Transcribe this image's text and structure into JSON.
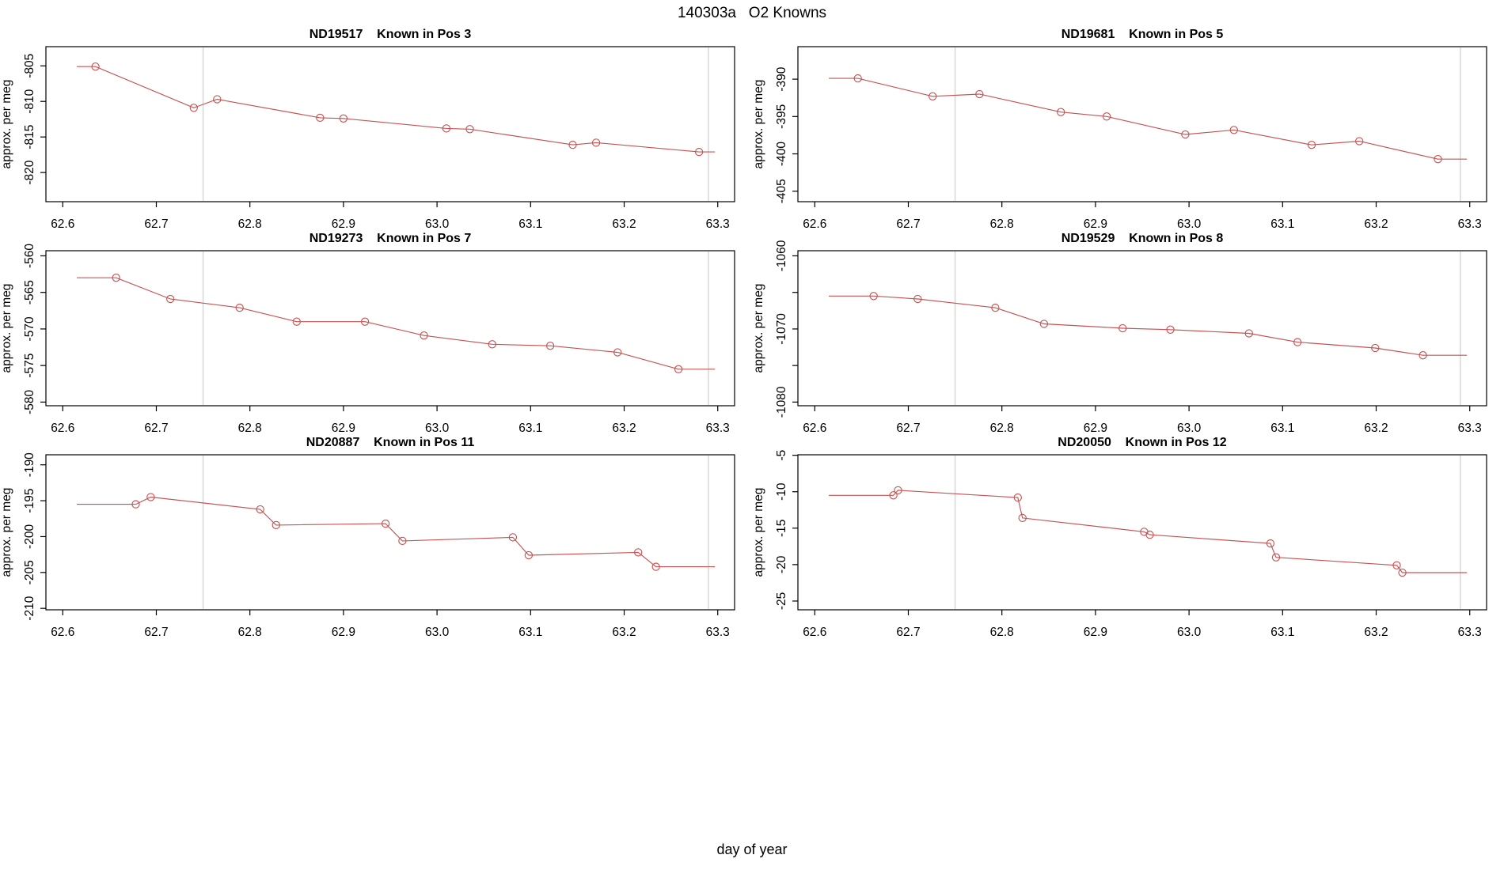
{
  "page": {
    "title": "140303a   O2 Knowns",
    "xlabel": "day of year"
  },
  "chart_data": [
    {
      "type": "line",
      "title": "ND19517    Known in Pos 3",
      "sample_id": "ND19517",
      "position_label": "Known in Pos 3",
      "ylabel": "approx. per meg",
      "line_color": "#C65353",
      "vline_color": "#D7D7D7",
      "xlim": [
        62.582,
        63.318
      ],
      "ylim": [
        -824.1,
        -802.3
      ],
      "vlines": [
        62.75,
        63.29
      ],
      "x_ticks": [
        [
          62.6,
          "62.6"
        ],
        [
          62.7,
          "62.7"
        ],
        [
          62.8,
          "62.8"
        ],
        [
          62.9,
          "62.9"
        ],
        [
          63.0,
          "63.0"
        ],
        [
          63.1,
          "63.1"
        ],
        [
          63.2,
          "63.2"
        ],
        [
          63.3,
          "63.3"
        ]
      ],
      "y_ticks": [
        [
          -805,
          "-805"
        ],
        [
          -810,
          "-810"
        ],
        [
          -815,
          "-815"
        ],
        [
          -820,
          "-820"
        ]
      ],
      "x_start": 62.615,
      "x_end": 63.297,
      "x": [
        62.635,
        62.74,
        62.765,
        62.875,
        62.9,
        63.01,
        63.035,
        63.145,
        63.17,
        63.28
      ],
      "y": [
        -805.1,
        -810.9,
        -809.7,
        -812.3,
        -812.4,
        -813.8,
        -813.9,
        -816.1,
        -815.8,
        -817.1
      ]
    },
    {
      "type": "line",
      "title": "ND19681    Known in Pos 5",
      "sample_id": "ND19681",
      "position_label": "Known in Pos 5",
      "ylabel": "approx. per meg",
      "line_color": "#C65353",
      "vline_color": "#D7D7D7",
      "xlim": [
        62.582,
        63.318
      ],
      "ylim": [
        -406.4,
        -385.65
      ],
      "vlines": [
        62.75,
        63.29
      ],
      "x_ticks": [
        [
          62.6,
          "62.6"
        ],
        [
          62.7,
          "62.7"
        ],
        [
          62.8,
          "62.8"
        ],
        [
          62.9,
          "62.9"
        ],
        [
          63.0,
          "63.0"
        ],
        [
          63.1,
          "63.1"
        ],
        [
          63.2,
          "63.2"
        ],
        [
          63.3,
          "63.3"
        ]
      ],
      "y_ticks": [
        [
          -390,
          "-390"
        ],
        [
          -395,
          "-395"
        ],
        [
          -400,
          "-400"
        ],
        [
          -405,
          "-405"
        ]
      ],
      "x_start": 62.615,
      "x_end": 63.297,
      "x": [
        62.646,
        62.726,
        62.776,
        62.863,
        62.912,
        62.996,
        63.048,
        63.131,
        63.182,
        63.266
      ],
      "y": [
        -389.9,
        -392.3,
        -392.0,
        -394.4,
        -395.0,
        -397.4,
        -396.8,
        -398.8,
        -398.3,
        -400.7
      ]
    },
    {
      "type": "line",
      "title": "ND19273    Known in Pos 7",
      "sample_id": "ND19273",
      "position_label": "Known in Pos 7",
      "ylabel": "approx. per meg",
      "line_color": "#C65353",
      "vline_color": "#D7D7D7",
      "xlim": [
        62.582,
        63.318
      ],
      "ylim": [
        -580.5,
        -559.3
      ],
      "vlines": [
        62.75,
        63.29
      ],
      "x_ticks": [
        [
          62.6,
          "62.6"
        ],
        [
          62.7,
          "62.7"
        ],
        [
          62.8,
          "62.8"
        ],
        [
          62.9,
          "62.9"
        ],
        [
          63.0,
          "63.0"
        ],
        [
          63.1,
          "63.1"
        ],
        [
          63.2,
          "63.2"
        ],
        [
          63.3,
          "63.3"
        ]
      ],
      "y_ticks": [
        [
          -560,
          "-560"
        ],
        [
          -565,
          "-565"
        ],
        [
          -570,
          "-570"
        ],
        [
          -575,
          "-575"
        ],
        [
          -580,
          "-580"
        ]
      ],
      "x_start": 62.615,
      "x_end": 63.297,
      "x": [
        62.657,
        62.715,
        62.789,
        62.85,
        62.923,
        62.986,
        63.059,
        63.121,
        63.193,
        63.258
      ],
      "y": [
        -563.0,
        -565.9,
        -567.1,
        -569.0,
        -569.0,
        -570.9,
        -572.1,
        -572.3,
        -573.2,
        -575.5
      ]
    },
    {
      "type": "line",
      "title": "ND19529    Known in Pos 8",
      "sample_id": "ND19529",
      "position_label": "Known in Pos 8",
      "ylabel": "approx. per meg",
      "line_color": "#C65353",
      "vline_color": "#D7D7D7",
      "xlim": [
        62.582,
        63.318
      ],
      "ylim": [
        -1080.5,
        -1059.3
      ],
      "vlines": [
        62.75,
        63.29
      ],
      "x_ticks": [
        [
          62.6,
          "62.6"
        ],
        [
          62.7,
          "62.7"
        ],
        [
          62.8,
          "62.8"
        ],
        [
          62.9,
          "62.9"
        ],
        [
          63.0,
          "63.0"
        ],
        [
          63.1,
          "63.1"
        ],
        [
          63.2,
          "63.2"
        ],
        [
          63.3,
          "63.3"
        ]
      ],
      "y_ticks": [
        [
          -1060,
          "-1060"
        ],
        [
          -1065,
          ""
        ],
        [
          -1070,
          "-1070"
        ],
        [
          -1075,
          ""
        ],
        [
          -1080,
          "-1080"
        ]
      ],
      "x_start": 62.615,
      "x_end": 63.297,
      "x": [
        62.663,
        62.71,
        62.793,
        62.845,
        62.929,
        62.98,
        63.064,
        63.116,
        63.199,
        63.25
      ],
      "y": [
        -1065.5,
        -1065.9,
        -1067.1,
        -1069.3,
        -1069.9,
        -1070.1,
        -1070.6,
        -1071.8,
        -1072.6,
        -1073.6
      ]
    },
    {
      "type": "line",
      "title": "ND20887    Known in Pos 11",
      "sample_id": "ND20887",
      "position_label": "Known in Pos 11",
      "ylabel": "approx. per meg",
      "line_color": "#C65353",
      "vline_color": "#D7D7D7",
      "xlim": [
        62.582,
        63.318
      ],
      "ylim": [
        -210.2,
        -188.6
      ],
      "vlines": [
        62.75,
        63.29
      ],
      "x_ticks": [
        [
          62.6,
          "62.6"
        ],
        [
          62.7,
          "62.7"
        ],
        [
          62.8,
          "62.8"
        ],
        [
          62.9,
          "62.9"
        ],
        [
          63.0,
          "63.0"
        ],
        [
          63.1,
          "63.1"
        ],
        [
          63.2,
          "63.2"
        ],
        [
          63.3,
          "63.3"
        ]
      ],
      "y_ticks": [
        [
          -190,
          "-190"
        ],
        [
          -195,
          "-195"
        ],
        [
          -200,
          "-200"
        ],
        [
          -205,
          "-205"
        ],
        [
          -210,
          "-210"
        ]
      ],
      "x_start": 62.615,
      "x_end": 63.297,
      "x": [
        62.678,
        62.694,
        62.811,
        62.828,
        62.945,
        62.963,
        63.081,
        63.098,
        63.215,
        63.234
      ],
      "y": [
        -195.5,
        -194.5,
        -196.2,
        -198.4,
        -198.2,
        -200.6,
        -200.1,
        -202.6,
        -202.2,
        -204.2
      ]
    },
    {
      "type": "line",
      "title": "ND20050    Known in Pos 12",
      "sample_id": "ND20050",
      "position_label": "Known in Pos 12",
      "ylabel": "approx. per meg",
      "line_color": "#C65353",
      "vline_color": "#D7D7D7",
      "xlim": [
        62.582,
        63.318
      ],
      "ylim": [
        -26.2,
        -4.93
      ],
      "vlines": [
        62.75,
        63.29
      ],
      "x_ticks": [
        [
          62.6,
          "62.6"
        ],
        [
          62.7,
          "62.7"
        ],
        [
          62.8,
          "62.8"
        ],
        [
          62.9,
          "62.9"
        ],
        [
          63.0,
          "63.0"
        ],
        [
          63.1,
          "63.1"
        ],
        [
          63.2,
          "63.2"
        ],
        [
          63.3,
          "63.3"
        ]
      ],
      "y_ticks": [
        [
          -5,
          "-5"
        ],
        [
          -10,
          "-10"
        ],
        [
          -15,
          "-15"
        ],
        [
          -20,
          "-20"
        ],
        [
          -25,
          "-25"
        ]
      ],
      "x_start": 62.615,
      "x_end": 63.297,
      "x": [
        62.684,
        62.689,
        62.817,
        62.822,
        62.952,
        62.958,
        63.087,
        63.093,
        63.222,
        63.228
      ],
      "y": [
        -10.5,
        -9.8,
        -10.8,
        -13.6,
        -15.5,
        -15.9,
        -17.1,
        -19.0,
        -20.1,
        -21.1
      ]
    }
  ]
}
